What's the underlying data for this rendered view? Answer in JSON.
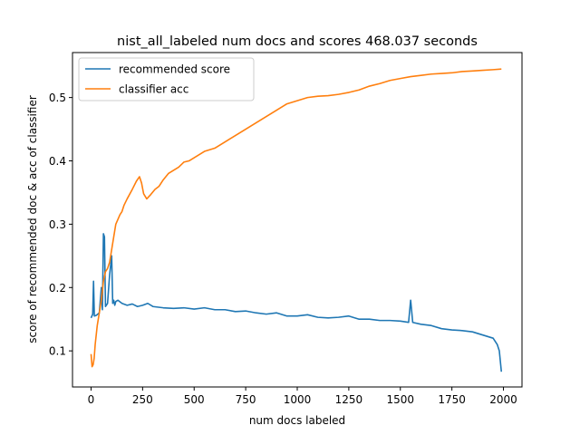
{
  "chart_data": {
    "type": "line",
    "title": "nist_all_labeled num docs and scores 468.037 seconds",
    "xlabel": "num docs labeled",
    "ylabel": "score of recommended doc & acc of classifier",
    "xlim": [
      -90,
      2090
    ],
    "ylim": [
      0.043,
      0.571
    ],
    "xticks": [
      0,
      250,
      500,
      750,
      1000,
      1250,
      1500,
      1750,
      2000
    ],
    "xtick_labels": [
      "0",
      "250",
      "500",
      "750",
      "1000",
      "1250",
      "1500",
      "1750",
      "2000"
    ],
    "yticks": [
      0.1,
      0.2,
      0.3,
      0.4,
      0.5
    ],
    "ytick_labels": [
      "0.1",
      "0.2",
      "0.3",
      "0.4",
      "0.5"
    ],
    "grid": false,
    "legend_position": "top-left",
    "series": [
      {
        "name": "recommended score",
        "color": "#1f77b4",
        "x": [
          0,
          8,
          12,
          16,
          25,
          40,
          50,
          55,
          60,
          65,
          70,
          80,
          90,
          100,
          105,
          110,
          115,
          120,
          130,
          150,
          175,
          200,
          225,
          250,
          275,
          300,
          350,
          400,
          450,
          500,
          550,
          600,
          650,
          700,
          750,
          800,
          850,
          900,
          950,
          1000,
          1050,
          1100,
          1150,
          1200,
          1250,
          1300,
          1350,
          1400,
          1450,
          1500,
          1540,
          1550,
          1560,
          1600,
          1650,
          1700,
          1750,
          1800,
          1850,
          1900,
          1950,
          1970,
          1980,
          1990
        ],
        "y": [
          0.152,
          0.158,
          0.21,
          0.155,
          0.156,
          0.16,
          0.2,
          0.165,
          0.285,
          0.28,
          0.17,
          0.175,
          0.22,
          0.25,
          0.175,
          0.18,
          0.172,
          0.178,
          0.18,
          0.175,
          0.172,
          0.174,
          0.17,
          0.172,
          0.175,
          0.17,
          0.168,
          0.167,
          0.168,
          0.166,
          0.168,
          0.165,
          0.165,
          0.162,
          0.163,
          0.16,
          0.158,
          0.16,
          0.155,
          0.155,
          0.157,
          0.153,
          0.152,
          0.153,
          0.155,
          0.15,
          0.15,
          0.148,
          0.148,
          0.147,
          0.145,
          0.18,
          0.145,
          0.142,
          0.14,
          0.135,
          0.133,
          0.132,
          0.13,
          0.125,
          0.12,
          0.11,
          0.1,
          0.067
        ]
      },
      {
        "name": "classifier acc",
        "color": "#ff7f0e",
        "x": [
          0,
          5,
          10,
          15,
          20,
          30,
          40,
          50,
          60,
          70,
          80,
          90,
          100,
          110,
          120,
          140,
          150,
          160,
          175,
          200,
          220,
          235,
          245,
          255,
          270,
          290,
          310,
          330,
          350,
          375,
          400,
          425,
          450,
          475,
          500,
          550,
          600,
          650,
          700,
          750,
          800,
          850,
          900,
          950,
          1000,
          1050,
          1100,
          1150,
          1200,
          1250,
          1300,
          1350,
          1400,
          1450,
          1500,
          1550,
          1600,
          1650,
          1700,
          1750,
          1800,
          1850,
          1900,
          1950,
          1990
        ],
        "y": [
          0.095,
          0.075,
          0.078,
          0.088,
          0.11,
          0.14,
          0.16,
          0.18,
          0.21,
          0.225,
          0.23,
          0.24,
          0.26,
          0.28,
          0.3,
          0.315,
          0.32,
          0.33,
          0.34,
          0.355,
          0.368,
          0.375,
          0.365,
          0.348,
          0.34,
          0.347,
          0.355,
          0.36,
          0.37,
          0.38,
          0.385,
          0.39,
          0.398,
          0.4,
          0.405,
          0.415,
          0.42,
          0.43,
          0.44,
          0.45,
          0.46,
          0.47,
          0.48,
          0.49,
          0.495,
          0.5,
          0.502,
          0.503,
          0.505,
          0.508,
          0.512,
          0.518,
          0.522,
          0.527,
          0.53,
          0.533,
          0.535,
          0.537,
          0.538,
          0.539,
          0.541,
          0.542,
          0.543,
          0.544,
          0.545
        ]
      }
    ]
  }
}
